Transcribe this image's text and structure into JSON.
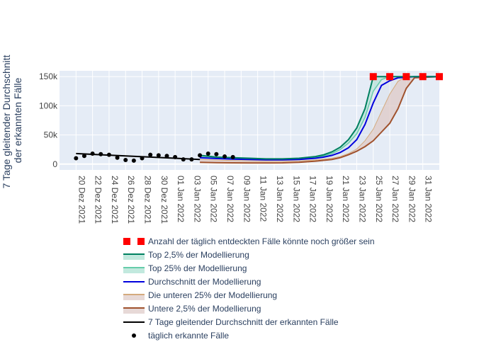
{
  "chart_data": {
    "type": "line",
    "ylabel_lines": [
      "7 Tage gleitender Durchschnitt",
      "der erkannten Fälle"
    ],
    "ylim": [
      -10000,
      160000
    ],
    "x_dates": [
      "2021-12-18",
      "2022-02-02"
    ],
    "y_ticks": [
      0,
      50000,
      100000,
      150000
    ],
    "y_tick_labels": [
      "0",
      "50k",
      "100k",
      "150k"
    ],
    "x_ticks": [
      "2021-12-20",
      "2021-12-22",
      "2021-12-24",
      "2021-12-26",
      "2021-12-28",
      "2021-12-30",
      "2022-01-01",
      "2022-01-03",
      "2022-01-05",
      "2022-01-07",
      "2022-01-09",
      "2022-01-11",
      "2022-01-13",
      "2022-01-15",
      "2022-01-17",
      "2022-01-19",
      "2022-01-21",
      "2022-01-23",
      "2022-01-25",
      "2022-01-27",
      "2022-01-29",
      "2022-01-31"
    ],
    "x_tick_labels": [
      "20 Dez 2021",
      "22 Dez 2021",
      "24 Dez 2021",
      "26 Dez 2021",
      "28 Dez 2021",
      "30 Dez 2021",
      "01 Jan 2022",
      "03 Jan 2022",
      "05 Jan 2022",
      "07 Jan 2022",
      "09 Jan 2022",
      "11 Jan 2022",
      "13 Jan 2022",
      "15 Jan 2022",
      "17 Jan 2022",
      "19 Jan 2022",
      "21 Jan 2022",
      "23 Jan 2022",
      "25 Jan 2022",
      "27 Jan 2022",
      "29 Jan 2022",
      "31 Jan 2022"
    ],
    "grid": true,
    "legend_position": "bottom",
    "colors": {
      "plot_bg": "#e5ecf6",
      "top25": "#008060",
      "top25_fill": "#a8e0d0",
      "top75": "#66ccaa",
      "mean": "#0000dd",
      "bottom25": "#d4aa7d",
      "bottom": "#a0522d",
      "bottom_fill": "#ddc9c6",
      "moving_avg": "#000000",
      "daily": "#000000",
      "capped": "#ff0000"
    },
    "series": [
      {
        "name": "Anzahl der täglich entdeckten Fälle könnte noch größer sein",
        "kind": "capped_markers",
        "x": [
          "2022-01-25",
          "2022-01-27",
          "2022-01-29",
          "2022-01-31",
          "2022-02-02"
        ],
        "y": [
          150000,
          150000,
          150000,
          150000,
          150000
        ]
      },
      {
        "name": "Top 2,5% der Modellierung",
        "kind": "line_fill",
        "x": [
          "2022-01-04",
          "2022-01-06",
          "2022-01-08",
          "2022-01-10",
          "2022-01-12",
          "2022-01-14",
          "2022-01-16",
          "2022-01-18",
          "2022-01-19",
          "2022-01-20",
          "2022-01-21",
          "2022-01-22",
          "2022-01-23",
          "2022-01-24",
          "2022-01-25",
          "2022-01-26",
          "2022-01-28",
          "2022-01-30",
          "2022-02-02"
        ],
        "y": [
          15000,
          12000,
          11000,
          10000,
          9000,
          9000,
          10000,
          13000,
          16000,
          21000,
          29000,
          42000,
          62000,
          95000,
          150000,
          150000,
          150000,
          150000,
          150000
        ]
      },
      {
        "name": "Top 25% der Modellierung",
        "kind": "line_fill",
        "x": [
          "2022-01-04",
          "2022-01-06",
          "2022-01-08",
          "2022-01-10",
          "2022-01-12",
          "2022-01-14",
          "2022-01-16",
          "2022-01-18",
          "2022-01-19",
          "2022-01-20",
          "2022-01-21",
          "2022-01-22",
          "2022-01-23",
          "2022-01-24",
          "2022-01-25",
          "2022-01-26",
          "2022-01-27",
          "2022-01-28",
          "2022-01-30",
          "2022-02-02"
        ],
        "y": [
          12000,
          10500,
          9500,
          8800,
          8000,
          8000,
          9000,
          11500,
          14000,
          18000,
          25000,
          36000,
          52000,
          80000,
          125000,
          145000,
          150000,
          150000,
          150000,
          150000
        ]
      },
      {
        "name": "Durchschnitt der Modellierung",
        "kind": "line",
        "x": [
          "2022-01-04",
          "2022-01-06",
          "2022-01-08",
          "2022-01-10",
          "2022-01-12",
          "2022-01-14",
          "2022-01-16",
          "2022-01-18",
          "2022-01-19",
          "2022-01-20",
          "2022-01-21",
          "2022-01-22",
          "2022-01-23",
          "2022-01-24",
          "2022-01-25",
          "2022-01-26",
          "2022-01-27",
          "2022-01-28",
          "2022-01-30",
          "2022-02-02"
        ],
        "y": [
          11000,
          9500,
          8500,
          7800,
          7200,
          7200,
          8000,
          10000,
          12000,
          15000,
          20000,
          28000,
          42000,
          68000,
          105000,
          135000,
          143000,
          148000,
          150000,
          150000
        ]
      },
      {
        "name": "Die unteren 25% der Modellierung",
        "kind": "line_fill",
        "x": [
          "2022-01-04",
          "2022-01-06",
          "2022-01-08",
          "2022-01-10",
          "2022-01-12",
          "2022-01-14",
          "2022-01-16",
          "2022-01-18",
          "2022-01-20",
          "2022-01-21",
          "2022-01-22",
          "2022-01-23",
          "2022-01-24",
          "2022-01-25",
          "2022-01-26",
          "2022-01-27",
          "2022-01-28",
          "2022-01-29",
          "2022-02-02"
        ],
        "y": [
          8000,
          7000,
          6000,
          5500,
          5000,
          5000,
          5500,
          7000,
          10000,
          13000,
          18000,
          26000,
          40000,
          60000,
          90000,
          120000,
          142000,
          150000,
          150000
        ]
      },
      {
        "name": "Untere 2,5% der Modellierung",
        "kind": "line_fill",
        "x": [
          "2022-01-04",
          "2022-01-06",
          "2022-01-08",
          "2022-01-10",
          "2022-01-12",
          "2022-01-14",
          "2022-01-16",
          "2022-01-18",
          "2022-01-20",
          "2022-01-21",
          "2022-01-22",
          "2022-01-23",
          "2022-01-24",
          "2022-01-25",
          "2022-01-26",
          "2022-01-27",
          "2022-01-28",
          "2022-01-29",
          "2022-01-30",
          "2022-02-02"
        ],
        "y": [
          3000,
          2500,
          2200,
          2000,
          2000,
          2200,
          3000,
          5000,
          8000,
          11000,
          16000,
          22000,
          30000,
          40000,
          55000,
          70000,
          95000,
          130000,
          148000,
          150000
        ]
      },
      {
        "name": "7 Tage gleitender Durchschnitt der erkannten Fälle",
        "kind": "line",
        "x": [
          "2021-12-20",
          "2022-01-04"
        ],
        "y": [
          18000,
          8000
        ]
      },
      {
        "name": "täglich erkannte Fälle",
        "kind": "markers",
        "x": [
          "2021-12-20",
          "2021-12-21",
          "2021-12-22",
          "2021-12-23",
          "2021-12-24",
          "2021-12-25",
          "2021-12-26",
          "2021-12-27",
          "2021-12-28",
          "2021-12-29",
          "2021-12-30",
          "2021-12-31",
          "2022-01-01",
          "2022-01-02",
          "2022-01-03",
          "2022-01-04",
          "2022-01-05",
          "2022-01-06",
          "2022-01-07",
          "2022-01-08"
        ],
        "y": [
          10000,
          14000,
          18000,
          17000,
          16000,
          11000,
          7000,
          6000,
          10000,
          16000,
          15000,
          14000,
          12000,
          8000,
          8000,
          15000,
          18000,
          17000,
          13000,
          12000
        ]
      }
    ]
  }
}
